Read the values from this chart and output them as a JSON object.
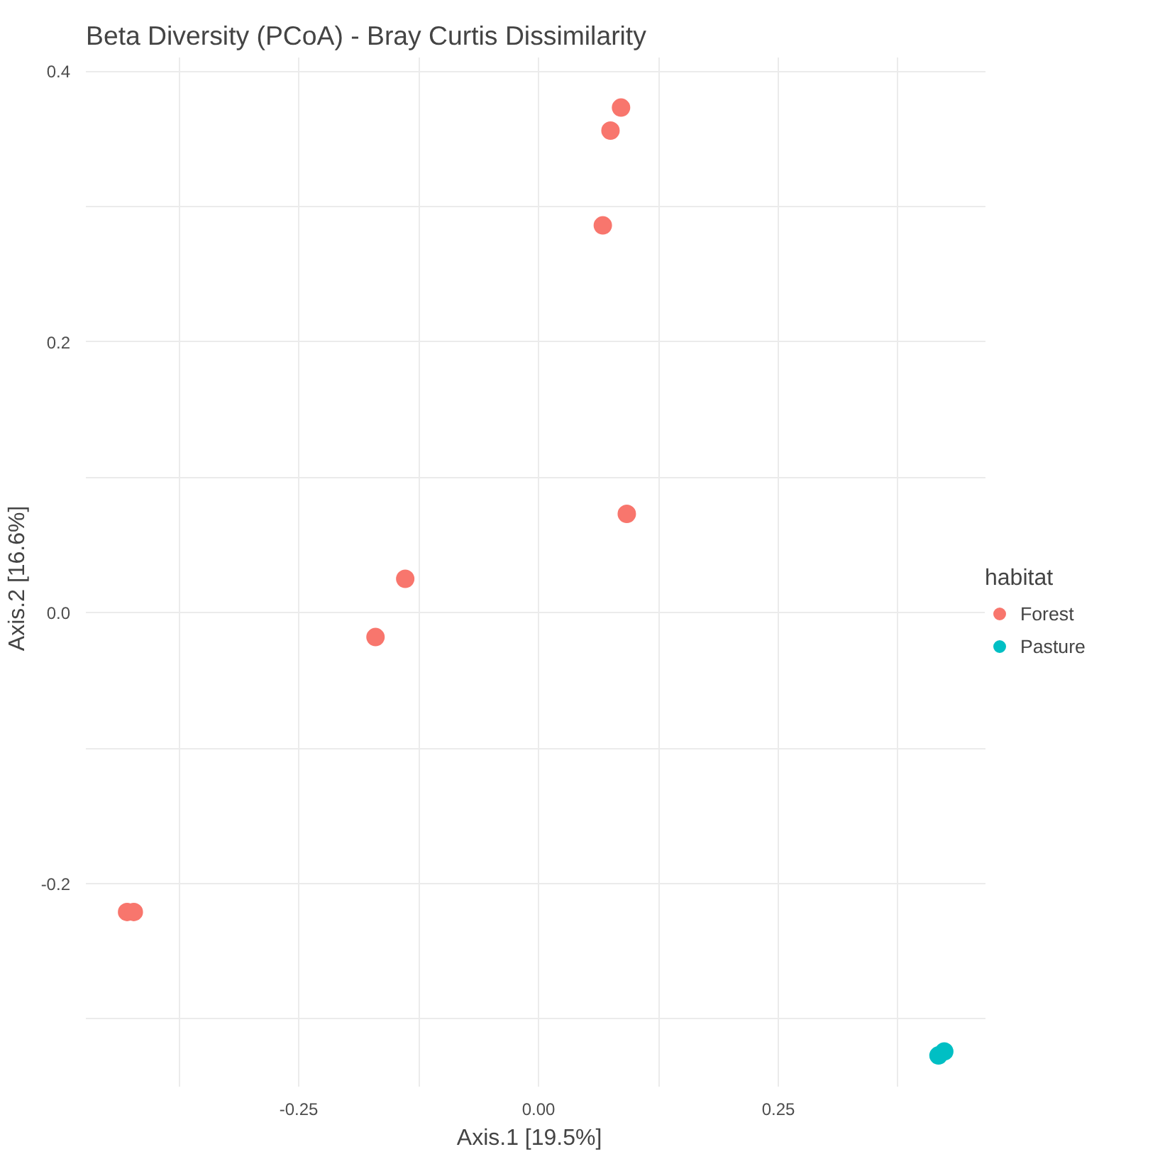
{
  "chart_data": {
    "type": "scatter",
    "title": "Beta Diversity (PCoA) - Bray Curtis Dissimilarity",
    "xlabel": "Axis.1   [19.5%]",
    "ylabel": "Axis.2   [16.6%]",
    "legend_title": "habitat",
    "series": [
      {
        "name": "Forest",
        "color": "#f8766d",
        "x": [
          0.086,
          0.075,
          0.067,
          0.092,
          -0.139,
          -0.17,
          -0.429,
          -0.422
        ],
        "values": [
          0.373,
          0.356,
          0.286,
          0.073,
          0.025,
          -0.018,
          -0.221,
          -0.221
        ]
      },
      {
        "name": "Pasture",
        "color": "#00bfc4",
        "x": [
          0.417,
          0.423
        ],
        "values": [
          -0.327,
          -0.324
        ]
      }
    ],
    "xlim": [
      -0.472,
      0.466
    ],
    "ylim": [
      -0.35,
      0.41
    ],
    "xticks": [
      {
        "value": -0.375,
        "label": null
      },
      {
        "value": -0.25,
        "label": "-0.25"
      },
      {
        "value": -0.125,
        "label": null
      },
      {
        "value": 0,
        "label": "0.00"
      },
      {
        "value": 0.125,
        "label": null
      },
      {
        "value": 0.25,
        "label": "0.25"
      },
      {
        "value": 0.375,
        "label": null
      }
    ],
    "yticks": [
      {
        "value": -0.3,
        "label": null
      },
      {
        "value": -0.2,
        "label": "-0.2"
      },
      {
        "value": -0.1,
        "label": null
      },
      {
        "value": 0,
        "label": "0.0"
      },
      {
        "value": 0.1,
        "label": null
      },
      {
        "value": 0.2,
        "label": "0.2"
      },
      {
        "value": 0.3,
        "label": null
      },
      {
        "value": 0.4,
        "label": "0.4"
      }
    ],
    "grid": true,
    "legend": "right",
    "marker": "circle"
  }
}
